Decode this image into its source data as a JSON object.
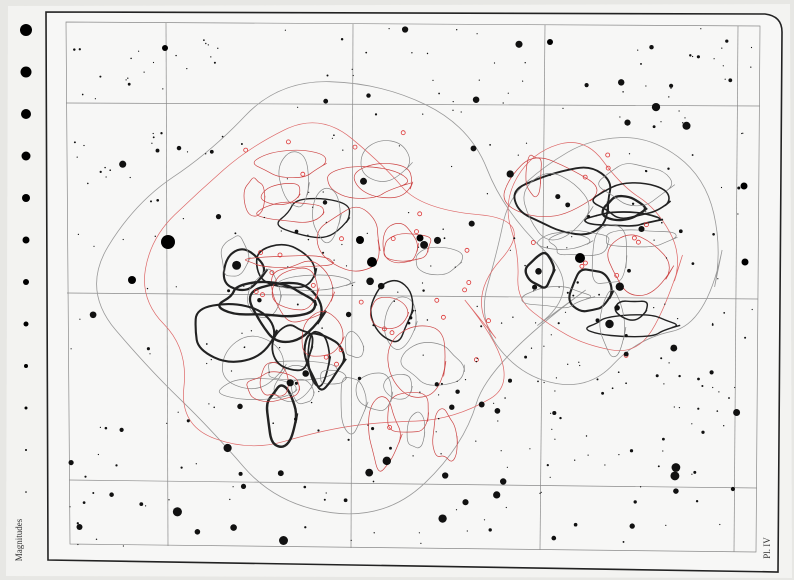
{
  "plate_label": "Pl. IV",
  "scale_label": "Magnitudes"
}
